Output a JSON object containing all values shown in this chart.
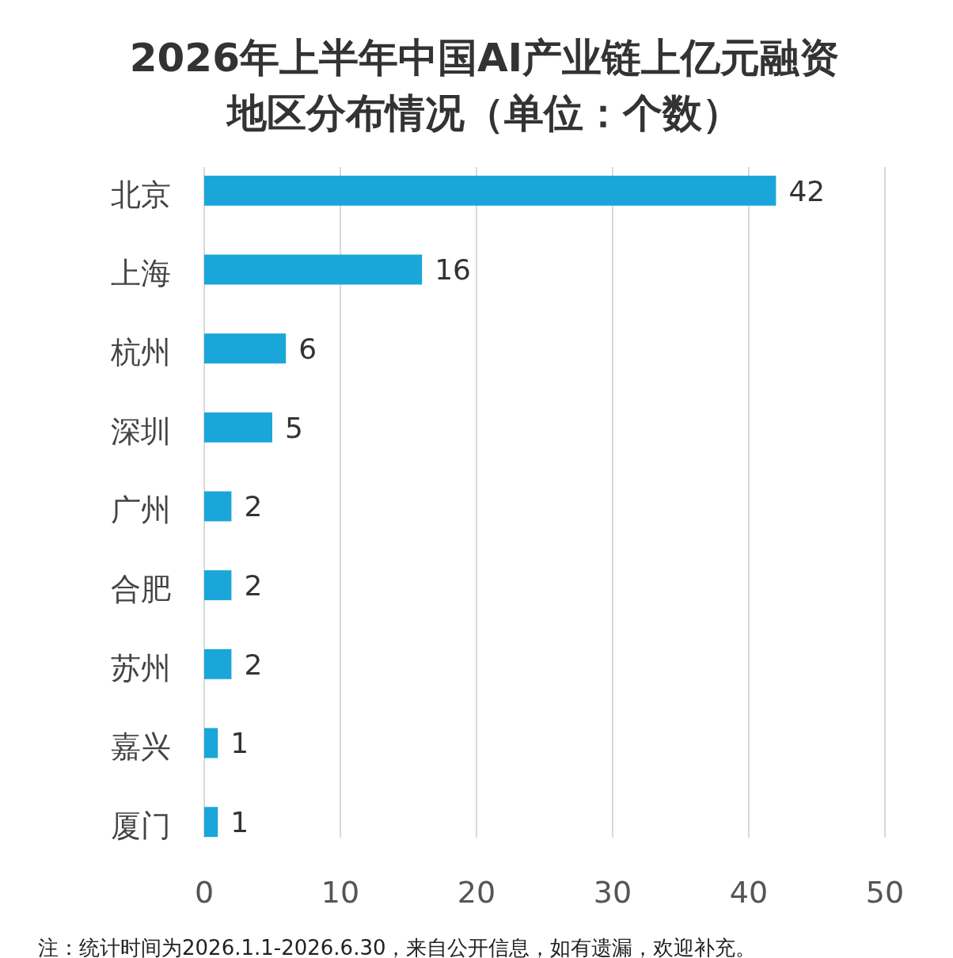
{
  "chart_data": {
    "type": "bar",
    "orientation": "horizontal",
    "title": "2026年上半年中国AI产业链上亿元融资地区分布情况（单位：个数）",
    "categories": [
      "北京",
      "上海",
      "杭州",
      "深圳",
      "广州",
      "合肥",
      "苏州",
      "嘉兴",
      "厦门"
    ],
    "values": [
      42,
      16,
      6,
      5,
      2,
      2,
      2,
      1,
      1
    ],
    "color": "#1ba6d9",
    "xlim": [
      0,
      50
    ],
    "xticks": [
      0,
      10,
      20,
      30,
      40,
      50
    ],
    "grid": "x",
    "data_labels": true,
    "annotations": [
      "注：统计时间为2026.1.1-2026.6.30，来自公开信息，如有遗漏，欢迎补充。"
    ]
  }
}
